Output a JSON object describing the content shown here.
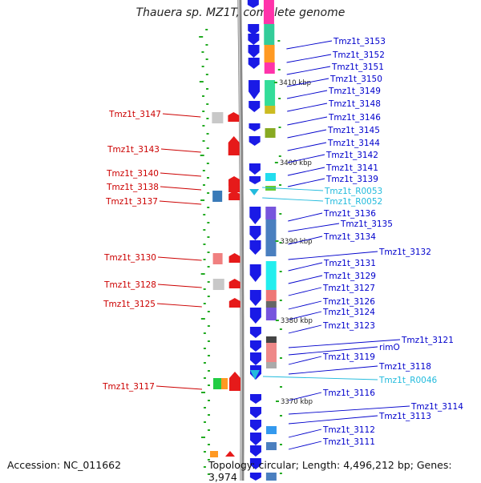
{
  "title": "Thauera sp. MZ1T, complete genome",
  "accession": "Accession: NC_011662",
  "topology": "Topology: circular; Length: 4,496,212 bp; Genes: 3,974",
  "colors": {
    "forward_label": "#0000cc",
    "reverse_label": "#cc0000",
    "rna_label": "#22bbdd",
    "forward_gene": "#1a1ae6",
    "reverse_gene": "#e61a1a",
    "backbone": "#888888",
    "tick": "#22aa22"
  },
  "scale": [
    "3410 kbp",
    "3400 kbp",
    "3390 kbp",
    "3380 kbp",
    "3370 kbp"
  ],
  "forward_labels": [
    "Tmz1t_3153",
    "Tmz1t_3152",
    "Tmz1t_3151",
    "Tmz1t_3150",
    "Tmz1t_3149",
    "Tmz1t_3148",
    "Tmz1t_3146",
    "Tmz1t_3145",
    "Tmz1t_3144",
    "Tmz1t_3142",
    "Tmz1t_3141",
    "Tmz1t_3139",
    "Tmz1t_3136",
    "Tmz1t_3135",
    "Tmz1t_3134",
    "Tmz1t_3132",
    "Tmz1t_3131",
    "Tmz1t_3129",
    "Tmz1t_3127",
    "Tmz1t_3126",
    "Tmz1t_3124",
    "Tmz1t_3123",
    "Tmz1t_3121",
    "rimO",
    "Tmz1t_3119",
    "Tmz1t_3118",
    "Tmz1t_3116",
    "Tmz1t_3114",
    "Tmz1t_3113",
    "Tmz1t_3112",
    "Tmz1t_3111"
  ],
  "rna_labels": [
    "Tmz1t_R0053",
    "Tmz1t_R0052",
    "Tmz1t_R0046"
  ],
  "reverse_labels": [
    "Tmz1t_3147",
    "Tmz1t_3143",
    "Tmz1t_3140",
    "Tmz1t_3138",
    "Tmz1t_3137",
    "Tmz1t_3130",
    "Tmz1t_3128",
    "Tmz1t_3125",
    "Tmz1t_3117"
  ]
}
